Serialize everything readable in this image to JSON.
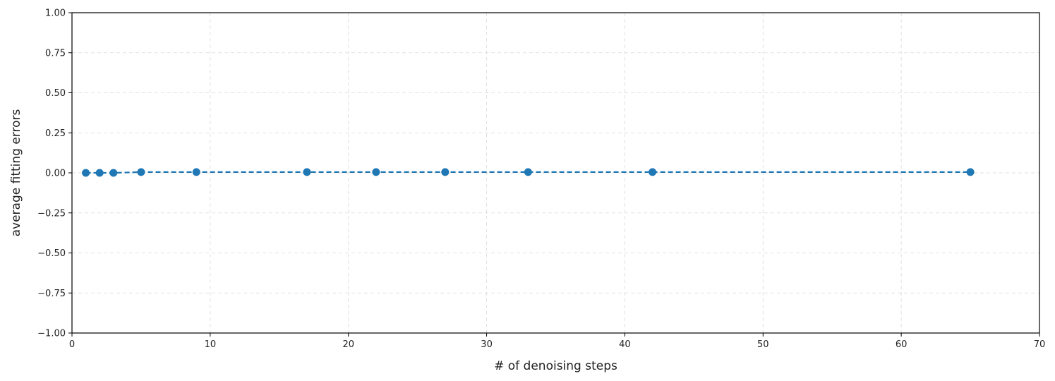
{
  "chart_data": {
    "type": "line",
    "title": "",
    "xlabel": "# of denoising steps",
    "ylabel": "average fitting errors",
    "xlim": [
      0,
      70
    ],
    "ylim": [
      -1.0,
      1.0
    ],
    "xticks": [
      0,
      10,
      20,
      30,
      40,
      50,
      60,
      70
    ],
    "yticks": [
      -1.0,
      -0.75,
      -0.5,
      -0.25,
      0.0,
      0.25,
      0.5,
      0.75,
      1.0
    ],
    "xtick_labels": [
      "0",
      "10",
      "20",
      "30",
      "40",
      "50",
      "60",
      "70"
    ],
    "ytick_labels": [
      "−1.00",
      "−0.75",
      "−0.50",
      "−0.25",
      "0.00",
      "0.25",
      "0.50",
      "0.75",
      "1.00"
    ],
    "grid": true,
    "grid_style": "dashed",
    "line_style": "dashed",
    "marker": "circle",
    "series": [
      {
        "color": "#1f77b4",
        "x": [
          1,
          2,
          3,
          5,
          9,
          17,
          22,
          27,
          33,
          42,
          65
        ],
        "y": [
          0.0,
          0.0,
          0.0,
          0.005,
          0.005,
          0.005,
          0.005,
          0.005,
          0.005,
          0.005,
          0.005
        ]
      }
    ]
  }
}
